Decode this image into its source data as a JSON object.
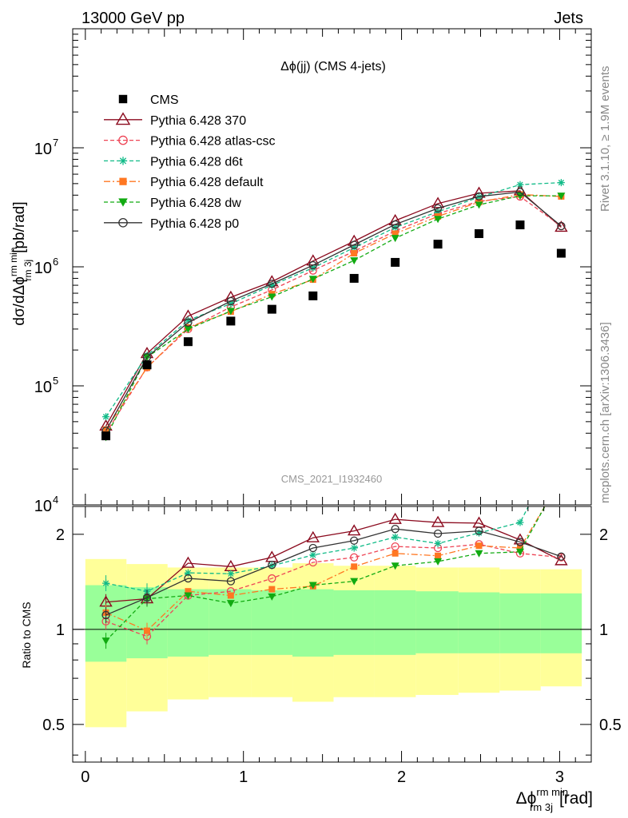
{
  "header": {
    "left": "13000 GeV pp",
    "right": "Jets"
  },
  "side_labels": {
    "rivet": "Rivet 3.1.10, ≥ 1.9M events",
    "mcplots": "mcplots.cern.ch [arXiv:1306.3436]"
  },
  "watermark": "CMS_2021_I1932460",
  "chart_data": [
    {
      "type": "scatter",
      "title": "Δϕ(jj) (CMS 4-jets)",
      "ylabel": "dσ/dΔϕrm 3jrm min [pb/rad]",
      "ylabel_parts": {
        "main": "dσ/dΔϕ",
        "sup": "rm min",
        "sub": "rm 3j",
        "unit": "[pb/rad]"
      },
      "yscale": "log",
      "ylim": [
        10000,
        100000000
      ],
      "xlim": [
        -0.08,
        3.2
      ],
      "ytick_labels": [
        "10",
        "10",
        "10",
        "10"
      ],
      "ytick_exponents": [
        "4",
        "5",
        "6",
        "7"
      ],
      "legend_position": "top-left",
      "x": [
        0.13,
        0.39,
        0.65,
        0.92,
        1.18,
        1.44,
        1.7,
        1.96,
        2.23,
        2.49,
        2.75,
        3.01
      ],
      "series": [
        {
          "name": "CMS",
          "color": "#000000",
          "values": [
            38000,
            150000,
            235000,
            350000,
            440000,
            570000,
            800000,
            1090000,
            1550000,
            1900000,
            2250000,
            1300000
          ]
        },
        {
          "name": "Pythia 6.428 370",
          "color": "#8b0a1e",
          "values": [
            46000,
            187000,
            385000,
            555000,
            750000,
            1120000,
            1640000,
            2440000,
            3400000,
            4150000,
            4350000,
            2150000
          ]
        },
        {
          "name": "Pythia 6.428 atlas-csc",
          "color": "#ee4455",
          "values": [
            40000,
            143000,
            300000,
            460000,
            640000,
            930000,
            1350000,
            2000000,
            2800000,
            3550000,
            3900000,
            2200000
          ]
        },
        {
          "name": "Pythia 6.428 d6t",
          "color": "#11bb88",
          "values": [
            55000,
            180000,
            355000,
            490000,
            700000,
            980000,
            1450000,
            2140000,
            2900000,
            3850000,
            4900000,
            5100000
          ]
        },
        {
          "name": "Pythia 6.428 default",
          "color": "#ff7722",
          "values": [
            43000,
            142000,
            310000,
            420000,
            590000,
            780000,
            1300000,
            1900000,
            2650000,
            3500000,
            4050000,
            3900000
          ]
        },
        {
          "name": "Pythia 6.428 dw",
          "color": "#11aa11",
          "values": [
            37000,
            174000,
            300000,
            425000,
            560000,
            790000,
            1130000,
            1740000,
            2520000,
            3320000,
            3950000,
            3950000
          ]
        },
        {
          "name": "Pythia 6.428 p0",
          "color": "#333333",
          "values": [
            42000,
            174000,
            340000,
            515000,
            720000,
            1030000,
            1530000,
            2270000,
            3100000,
            3900000,
            4250000,
            2200000
          ]
        }
      ]
    },
    {
      "type": "line",
      "ylabel": "Ratio to CMS",
      "xlabel": "Δϕrm 3jrm min [rad]",
      "xlabel_parts": {
        "main": "Δϕ",
        "sup": "rm min",
        "sub": "rm 3j",
        "unit": "[rad]"
      },
      "yscale": "log",
      "ylim": [
        0.38,
        2.45
      ],
      "xlim": [
        -0.08,
        3.2
      ],
      "xtick_labels": [
        "0",
        "1",
        "2",
        "3"
      ],
      "ytick_labels": [
        "0.5",
        "1",
        "2"
      ],
      "x": [
        0.13,
        0.39,
        0.65,
        0.92,
        1.18,
        1.44,
        1.7,
        1.96,
        2.23,
        2.49,
        2.75,
        3.01
      ],
      "bin_edges": [
        0,
        0.26,
        0.52,
        0.78,
        1.05,
        1.31,
        1.57,
        1.83,
        2.09,
        2.36,
        2.62,
        2.88,
        3.14
      ],
      "band_inner": {
        "color": "#99ff99",
        "low": [
          0.79,
          0.81,
          0.82,
          0.83,
          0.83,
          0.82,
          0.83,
          0.83,
          0.84,
          0.84,
          0.84,
          0.84
        ],
        "high": [
          1.38,
          1.36,
          1.34,
          1.34,
          1.33,
          1.34,
          1.33,
          1.33,
          1.32,
          1.31,
          1.3,
          1.3
        ]
      },
      "band_outer": {
        "color": "#ffff99",
        "low": [
          0.49,
          0.55,
          0.6,
          0.61,
          0.61,
          0.59,
          0.61,
          0.61,
          0.62,
          0.63,
          0.64,
          0.66
        ],
        "high": [
          1.67,
          1.61,
          1.57,
          1.57,
          1.57,
          1.62,
          1.59,
          1.59,
          1.57,
          1.57,
          1.55,
          1.55
        ]
      },
      "series": [
        {
          "name": "Pythia 6.428 370",
          "values": [
            1.22,
            1.25,
            1.62,
            1.58,
            1.69,
            1.95,
            2.05,
            2.23,
            2.18,
            2.17,
            1.92,
            1.65
          ]
        },
        {
          "name": "Pythia 6.428 atlas-csc",
          "values": [
            1.06,
            0.95,
            1.28,
            1.32,
            1.45,
            1.63,
            1.69,
            1.83,
            1.81,
            1.86,
            1.74,
            1.69
          ]
        },
        {
          "name": "Pythia 6.428 d6t",
          "values": [
            1.4,
            1.32,
            1.51,
            1.5,
            1.59,
            1.72,
            1.81,
            1.96,
            1.87,
            2.02,
            2.18,
            3.9
          ]
        },
        {
          "name": "Pythia 6.428 default",
          "values": [
            1.13,
            0.99,
            1.32,
            1.28,
            1.34,
            1.37,
            1.58,
            1.74,
            1.71,
            1.84,
            1.81,
            3.0
          ]
        },
        {
          "name": "Pythia 6.428 dw",
          "values": [
            0.92,
            1.25,
            1.28,
            1.21,
            1.27,
            1.38,
            1.42,
            1.59,
            1.64,
            1.74,
            1.76,
            3.05
          ]
        },
        {
          "name": "Pythia 6.428 p0",
          "values": [
            1.11,
            1.26,
            1.45,
            1.42,
            1.6,
            1.81,
            1.91,
            2.08,
            2.01,
            2.05,
            1.89,
            1.7
          ]
        }
      ]
    }
  ]
}
